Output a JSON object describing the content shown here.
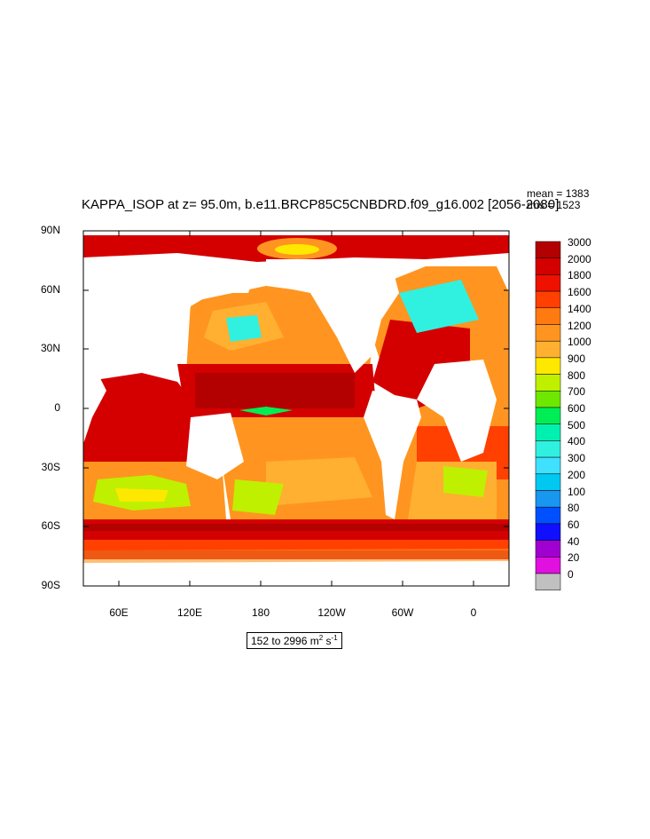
{
  "title": "KAPPA_ISOP at z=  95.0m, b.e11.BRCP85C5CNBDRD.f09_g16.002 [2056-2080]",
  "stats": {
    "mean": "mean = 1383",
    "rms": "rms = 1523"
  },
  "units": {
    "range": "152 to 2996 m",
    "exp1": "2",
    "s": " s",
    "exp2": "-1"
  },
  "axes": {
    "y_ticks": [
      "90N",
      "60N",
      "30N",
      "0",
      "30S",
      "60S",
      "90S"
    ],
    "x_ticks": [
      "60E",
      "120E",
      "180",
      "120W",
      "60W",
      "0"
    ]
  },
  "colorbar": {
    "levels": [
      "3000",
      "2000",
      "1800",
      "1600",
      "1400",
      "1200",
      "1000",
      "900",
      "800",
      "700",
      "600",
      "500",
      "400",
      "300",
      "200",
      "100",
      "80",
      "60",
      "40",
      "20",
      "0"
    ],
    "colors": [
      "#b30000",
      "#d40000",
      "#ee1100",
      "#ff4000",
      "#ff7a10",
      "#ff9520",
      "#ffb030",
      "#ffe800",
      "#bff000",
      "#6ee800",
      "#00ee55",
      "#00f0b0",
      "#30f0e0",
      "#40e0ff",
      "#00c8f0",
      "#1896f0",
      "#0050ff",
      "#1010ff",
      "#a000d0",
      "#e010e0",
      "#c0c0c0"
    ]
  },
  "map_data": {
    "type": "contour-fill",
    "variable": "KAPPA_ISOP",
    "depth": "95.0m",
    "lon_range": [
      30,
      390
    ],
    "lat_range": [
      -90,
      90
    ],
    "value_min": 152,
    "value_max": 2996,
    "mean": 1383,
    "rms": 1523
  }
}
